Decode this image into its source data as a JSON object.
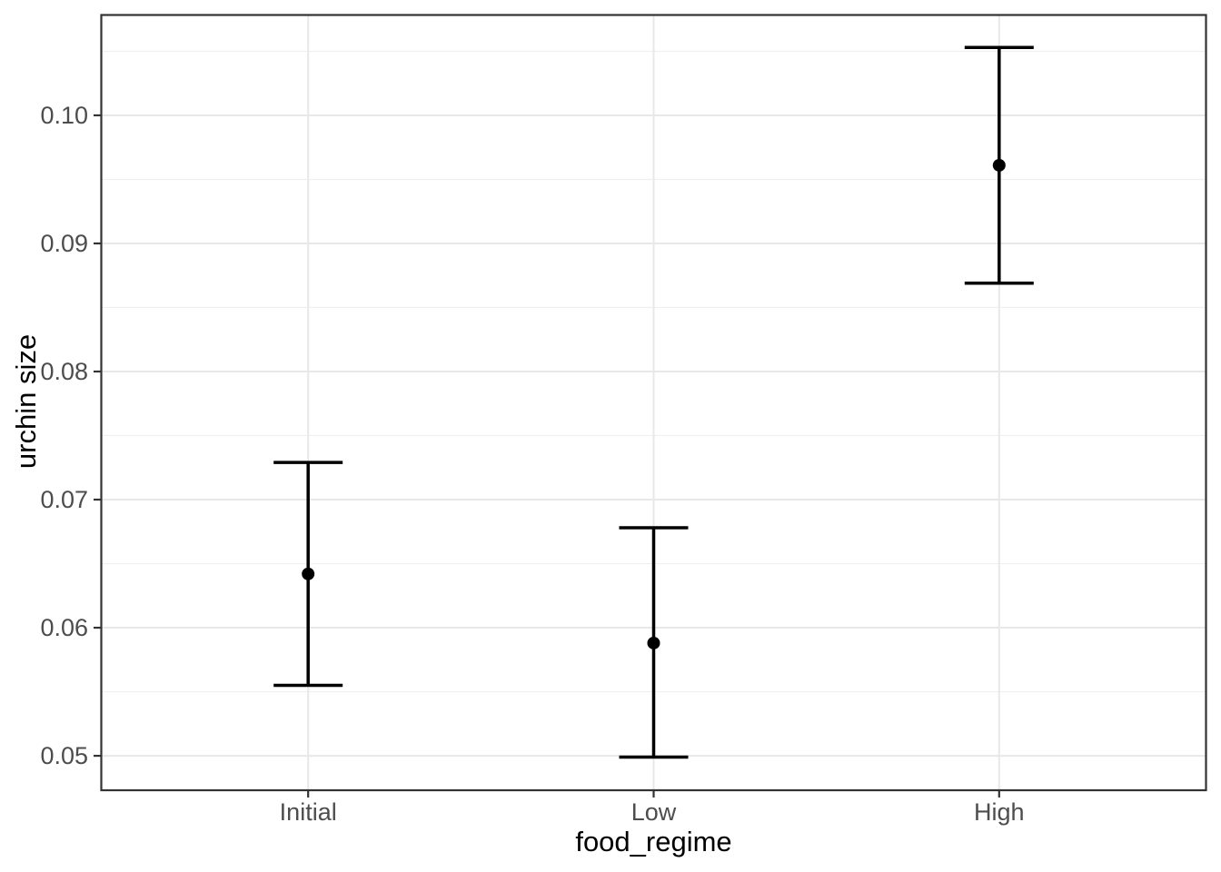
{
  "chart_data": {
    "type": "pointrange",
    "title": "",
    "xlabel": "food_regime",
    "ylabel": "urchin size",
    "categories": [
      "Initial",
      "Low",
      "High"
    ],
    "points": [
      {
        "category": "Initial",
        "mean": 0.0642,
        "lower": 0.0555,
        "upper": 0.0729
      },
      {
        "category": "Low",
        "mean": 0.0588,
        "lower": 0.0499,
        "upper": 0.0678
      },
      {
        "category": "High",
        "mean": 0.0961,
        "lower": 0.0869,
        "upper": 0.1053
      }
    ],
    "x_axis": {
      "tick_labels": [
        "Initial",
        "Low",
        "High"
      ]
    },
    "y_axis": {
      "ticks": [
        0.05,
        0.06,
        0.07,
        0.08,
        0.09,
        0.1
      ],
      "tick_labels": [
        "0.05",
        "0.06",
        "0.07",
        "0.08",
        "0.09",
        "0.10"
      ],
      "minor_ticks": [
        0.055,
        0.065,
        0.075,
        0.085,
        0.095,
        0.105
      ],
      "limits": [
        0.04731,
        0.10787
      ]
    },
    "grid": "on",
    "legend": "none",
    "style": {
      "background": "#FFFFFF",
      "panel_background": "#FFFFFF",
      "panel_border_color": "#333333",
      "grid_major_color": "#E8E8E8",
      "grid_minor_color": "#F0F0F0",
      "tick_color": "#333333",
      "tick_label_color": "#4D4D4D",
      "axis_title_color": "#000000",
      "point_color": "#000000",
      "line_color": "#000000"
    }
  }
}
